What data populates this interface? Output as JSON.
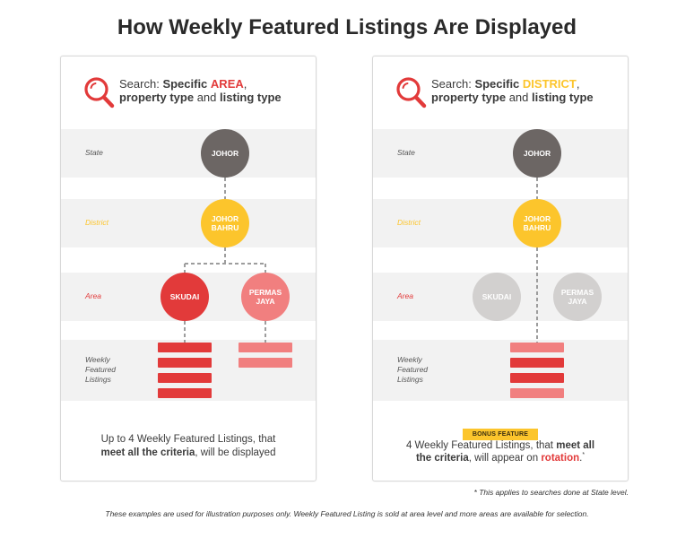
{
  "title": "How Weekly Featured Listings Are Displayed",
  "colors": {
    "red": "#e23a3a",
    "pink": "#f17f7f",
    "yellow": "#fcc52c",
    "dark_gray": "#6c6664",
    "light_gray": "#d2d0cf",
    "band_gray": "#f2f2f2"
  },
  "row_labels": {
    "state": "State",
    "district": "District",
    "area": "Area",
    "listings": "Weekly Featured Listings"
  },
  "panels": [
    {
      "search": {
        "icon": "search-icon",
        "prefix": "Search:",
        "specific": "Specific",
        "keyword": "AREA",
        "comma": ",",
        "item1": "property type",
        "and": "and",
        "item2": "listing type"
      },
      "nodes": {
        "state": "JOHOR",
        "district": "JOHOR BAHRU",
        "area1": "SKUDAI",
        "area2": "PERMAS JAYA"
      },
      "listing_bars": {
        "area1": [
          "red",
          "red",
          "red",
          "red"
        ],
        "area2": [
          "pink",
          "pink"
        ]
      },
      "caption": {
        "line1": "Up to 4 Weekly Featured Listings, that",
        "bold": "meet all the criteria",
        "rest": ", will be displayed"
      }
    },
    {
      "search": {
        "icon": "search-icon",
        "prefix": "Search:",
        "specific": "Specific",
        "keyword": "DISTRICT",
        "comma": ",",
        "item1": "property type",
        "and": "and",
        "item2": "listing type"
      },
      "nodes": {
        "state": "JOHOR",
        "district": "JOHOR BAHRU",
        "area1": "SKUDAI",
        "area2": "PERMAS JAYA"
      },
      "listing_bars": {
        "district": [
          "pink",
          "red",
          "red",
          "pink"
        ]
      },
      "badge": "BONUS FEATURE",
      "caption": {
        "line1": "4 Weekly Featured Listings, that",
        "bold1": "meet all",
        "bold2": "the criteria",
        "mid": ", will appear on",
        "highlight": "rotation",
        "period": ".",
        "asterisk": "*"
      }
    }
  ],
  "footnote": "* This applies to searches done at State level.",
  "disclaimer": "These examples are used for illustration purposes only. Weekly Featured Listing is sold at area level and more areas are available for selection."
}
